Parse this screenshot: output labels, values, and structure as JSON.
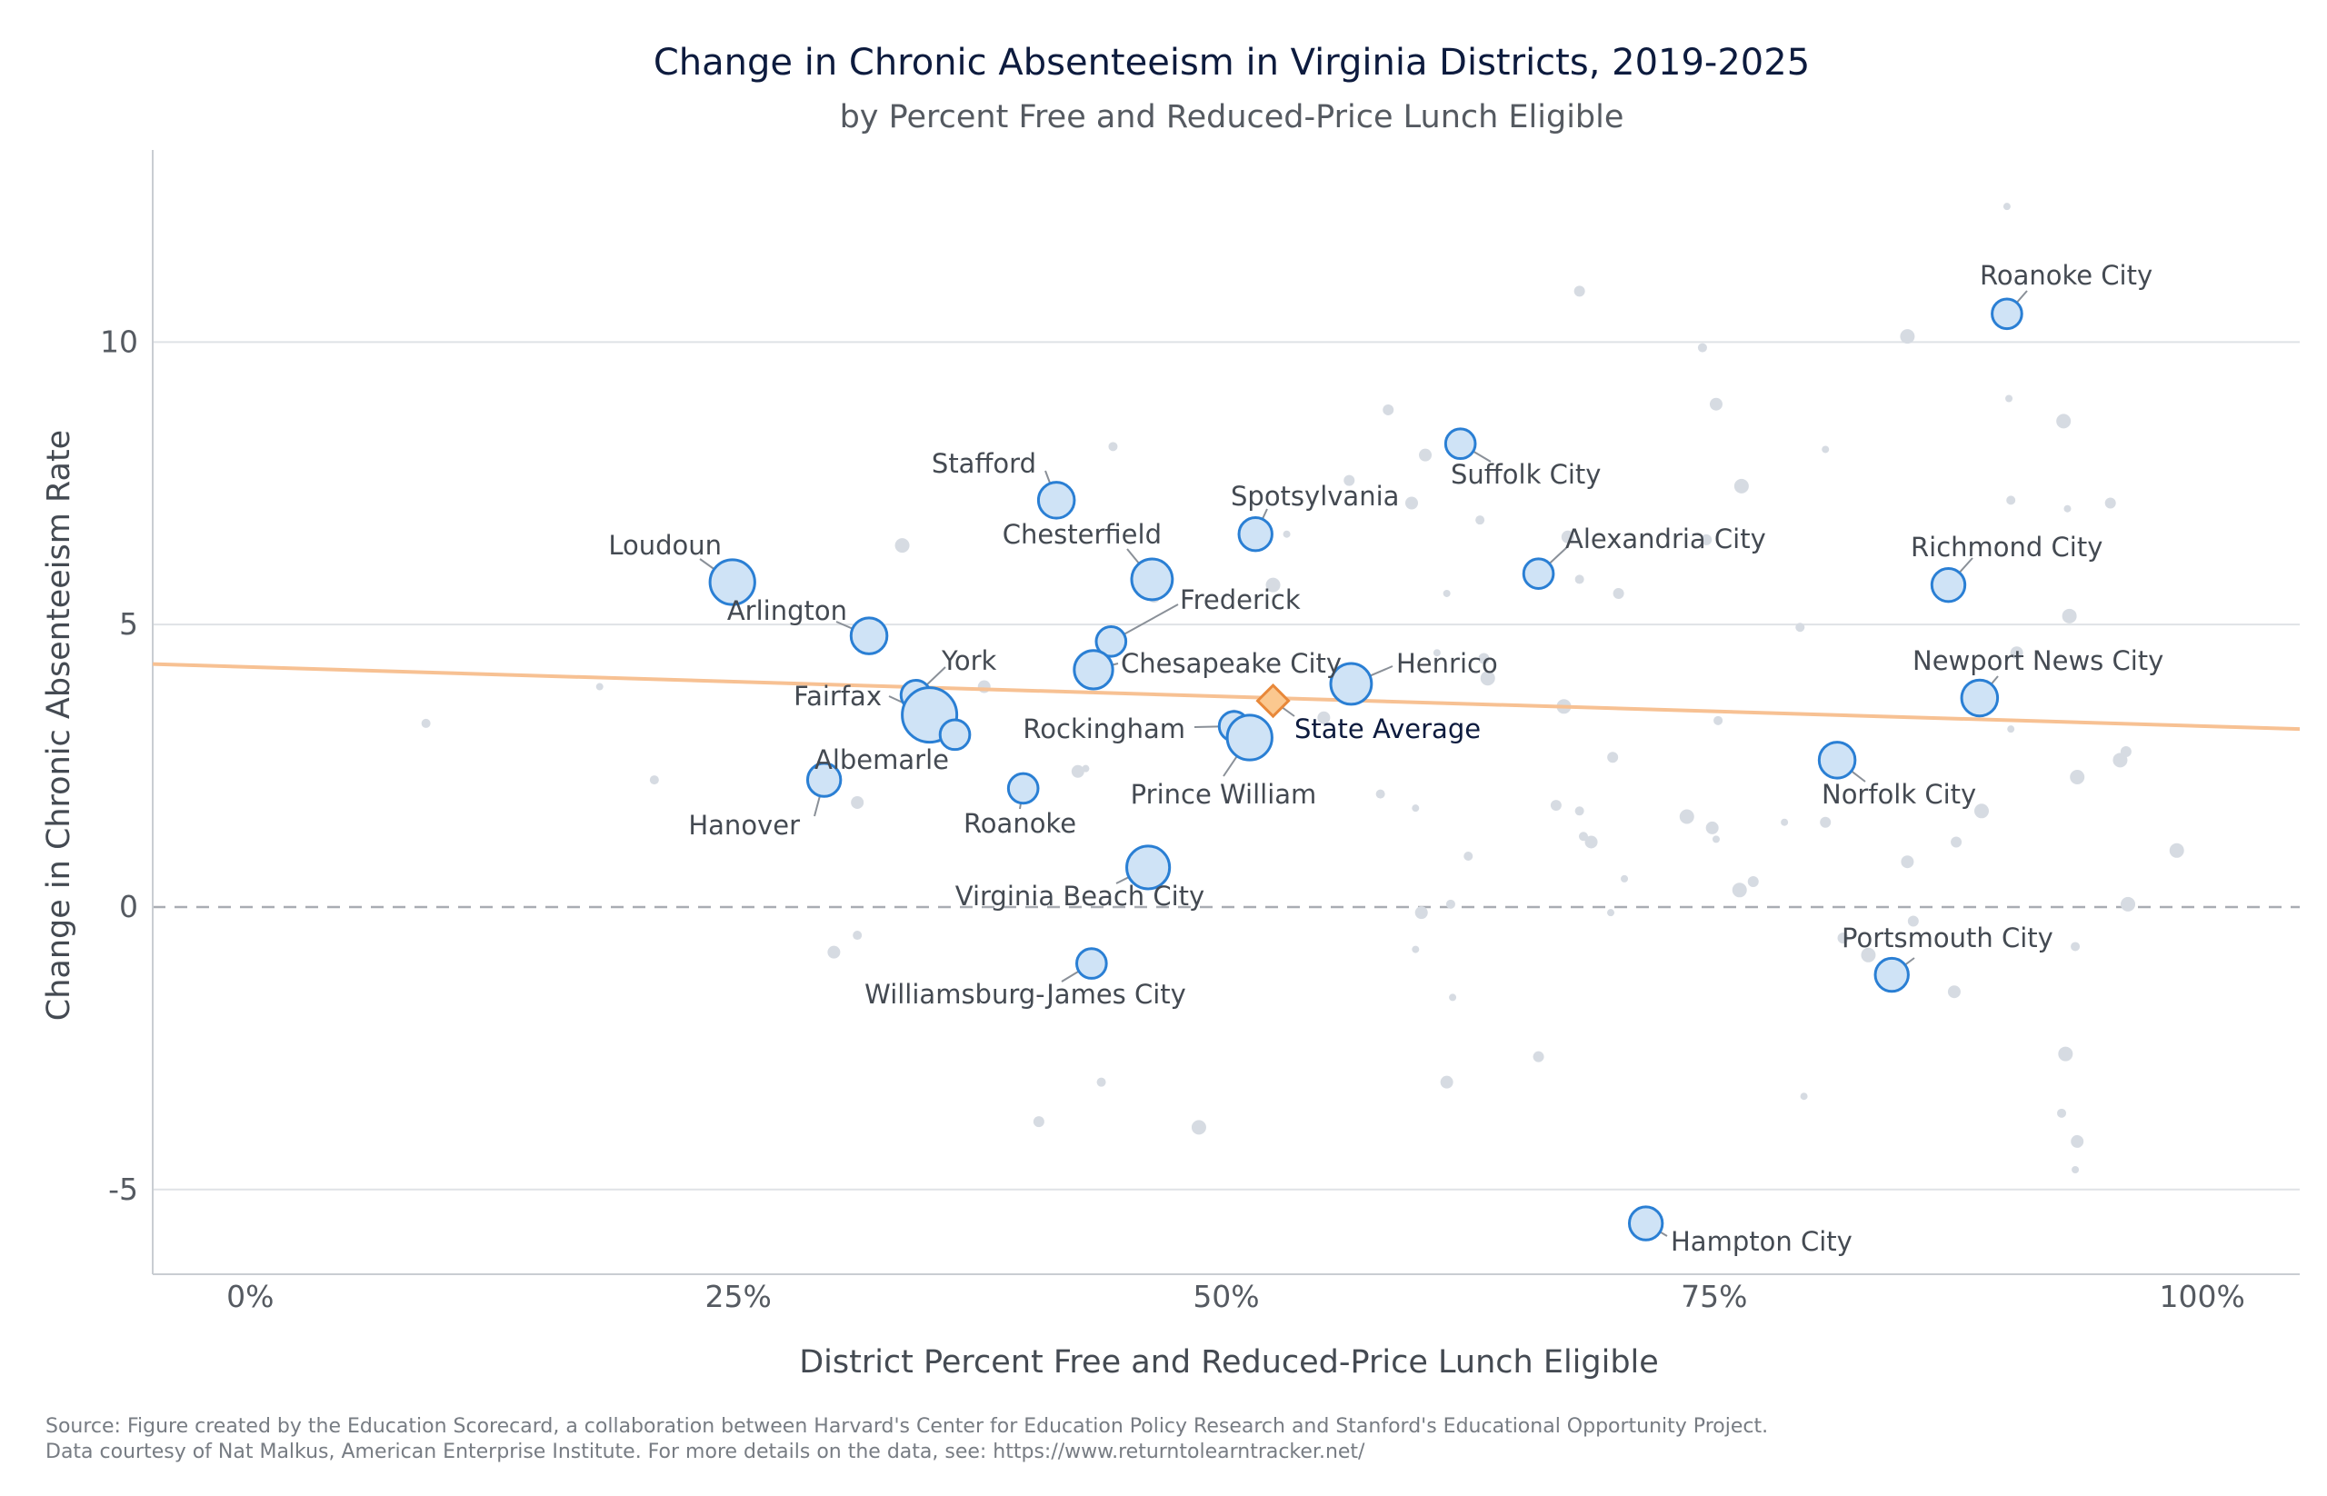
{
  "chart_data": {
    "type": "scatter",
    "title": "Change in Chronic Absenteeism in Virginia Districts, 2019-2025",
    "subtitle": "by Percent Free and Reduced-Price Lunch Eligible",
    "xlabel": "District Percent Free and Reduced-Price Lunch Eligible",
    "ylabel": "Change in Chronic Absenteeism Rate",
    "xlim": [
      -5,
      105
    ],
    "ylim": [
      -6.5,
      13.4
    ],
    "x_ticks": [
      0,
      25,
      50,
      75,
      100
    ],
    "x_tick_labels": [
      "0%",
      "25%",
      "50%",
      "75%",
      "100%"
    ],
    "y_ticks": [
      -5,
      0,
      5,
      10
    ],
    "y_tick_labels": [
      "-5",
      "0",
      "5",
      "10"
    ],
    "grid": "horizontal",
    "reference_line_y": 0,
    "trend_line": {
      "x": [
        -5,
        105
      ],
      "y": [
        4.3,
        3.15
      ]
    },
    "colors": {
      "highlight_fill": "#cfe3f6",
      "highlight_stroke": "#2a7fd4",
      "background_point": "#d6dbe2",
      "trend": "#f7c193",
      "state_fill": "#fbc88f",
      "state_stroke": "#e8883a"
    },
    "labeled_points": [
      {
        "name": "Roanoke City",
        "x": 90,
        "y": 10.5,
        "size": 1
      },
      {
        "name": "Suffolk City",
        "x": 62,
        "y": 8.2,
        "size": 1
      },
      {
        "name": "Stafford",
        "x": 41.3,
        "y": 7.2,
        "size": 2
      },
      {
        "name": "Spotsylvania",
        "x": 51.5,
        "y": 6.6,
        "size": 1.5
      },
      {
        "name": "Alexandria City",
        "x": 66,
        "y": 5.9,
        "size": 1
      },
      {
        "name": "Loudoun",
        "x": 24.7,
        "y": 5.75,
        "size": 4
      },
      {
        "name": "Chesterfield",
        "x": 46.2,
        "y": 5.8,
        "size": 3
      },
      {
        "name": "Richmond City",
        "x": 87,
        "y": 5.7,
        "size": 1.5
      },
      {
        "name": "Arlington",
        "x": 31.7,
        "y": 4.8,
        "size": 2
      },
      {
        "name": "Frederick",
        "x": 44.1,
        "y": 4.7,
        "size": 1
      },
      {
        "name": "Chesapeake City",
        "x": 43.2,
        "y": 4.2,
        "size": 2.5
      },
      {
        "name": "Henrico",
        "x": 56.4,
        "y": 3.95,
        "size": 3
      },
      {
        "name": "York",
        "x": 34.1,
        "y": 3.75,
        "size": 1
      },
      {
        "name": "Newport News City",
        "x": 88.6,
        "y": 3.7,
        "size": 2
      },
      {
        "name": "Fairfax",
        "x": 34.8,
        "y": 3.4,
        "size": 7
      },
      {
        "name": "Rockingham",
        "x": 50.4,
        "y": 3.2,
        "size": 1
      },
      {
        "name": "Albemarle",
        "x": 36.1,
        "y": 3.05,
        "size": 1
      },
      {
        "name": "Prince William",
        "x": 51.2,
        "y": 3.0,
        "size": 4
      },
      {
        "name": "Norfolk City",
        "x": 81.3,
        "y": 2.6,
        "size": 2
      },
      {
        "name": "Hanover",
        "x": 29.4,
        "y": 2.25,
        "size": 1.5
      },
      {
        "name": "Roanoke",
        "x": 39.6,
        "y": 2.1,
        "size": 1
      },
      {
        "name": "Virginia Beach City",
        "x": 46.0,
        "y": 0.7,
        "size": 3.5
      },
      {
        "name": "Williamsburg-James City",
        "x": 43.1,
        "y": -1.0,
        "size": 1
      },
      {
        "name": "Portsmouth City",
        "x": 84.1,
        "y": -1.2,
        "size": 1.5
      },
      {
        "name": "Hampton City",
        "x": 71.5,
        "y": -5.6,
        "size": 1.5
      }
    ],
    "state_average": {
      "name": "State Average",
      "x": 52.4,
      "y": 3.65
    },
    "background_points": [
      [
        90,
        12.4
      ],
      [
        68.1,
        10.9
      ],
      [
        84.9,
        10.1
      ],
      [
        74.4,
        9.9
      ],
      [
        75.1,
        8.9
      ],
      [
        90.1,
        9.0
      ],
      [
        58.3,
        8.8
      ],
      [
        92.9,
        8.6
      ],
      [
        44.2,
        8.15
      ],
      [
        60.2,
        8.0
      ],
      [
        80.7,
        8.1
      ],
      [
        56.3,
        7.55
      ],
      [
        76.4,
        7.45
      ],
      [
        90.2,
        7.2
      ],
      [
        59.5,
        7.15
      ],
      [
        93.1,
        7.05
      ],
      [
        95.3,
        7.15
      ],
      [
        33.4,
        6.4
      ],
      [
        63,
        6.85
      ],
      [
        67.5,
        6.55
      ],
      [
        53.1,
        6.6
      ],
      [
        74.6,
        6.5
      ],
      [
        52.4,
        5.7
      ],
      [
        68.1,
        5.8
      ],
      [
        46.3,
        5.5
      ],
      [
        61.3,
        5.55
      ],
      [
        70.1,
        5.55
      ],
      [
        93.2,
        5.15
      ],
      [
        79.4,
        4.95
      ],
      [
        90.5,
        4.5
      ],
      [
        60.8,
        4.5
      ],
      [
        63.2,
        4.4
      ],
      [
        63.4,
        4.05
      ],
      [
        9.0,
        3.25
      ],
      [
        37.6,
        3.9
      ],
      [
        17.9,
        3.9
      ],
      [
        50.4,
        3.4
      ],
      [
        67.3,
        3.55
      ],
      [
        75.2,
        3.3
      ],
      [
        55,
        3.35
      ],
      [
        90.2,
        3.15
      ],
      [
        96.1,
        2.75
      ],
      [
        95.8,
        2.6
      ],
      [
        20.7,
        2.25
      ],
      [
        42.4,
        2.4
      ],
      [
        42.8,
        2.45
      ],
      [
        69.8,
        2.65
      ],
      [
        93.6,
        2.3
      ],
      [
        57.9,
        2.0
      ],
      [
        31.1,
        1.85
      ],
      [
        59.7,
        1.75
      ],
      [
        66.9,
        1.8
      ],
      [
        73.6,
        1.6
      ],
      [
        68.1,
        1.7
      ],
      [
        74.9,
        1.4
      ],
      [
        78.6,
        1.5
      ],
      [
        80.7,
        1.5
      ],
      [
        88.7,
        1.7
      ],
      [
        68.3,
        1.25
      ],
      [
        68.7,
        1.15
      ],
      [
        75.1,
        1.2
      ],
      [
        87.4,
        1.15
      ],
      [
        98.7,
        1.0
      ],
      [
        62.4,
        0.9
      ],
      [
        84.9,
        0.8
      ],
      [
        70.4,
        0.5
      ],
      [
        77,
        0.45
      ],
      [
        76.3,
        0.3
      ],
      [
        61.5,
        0.05
      ],
      [
        60,
        -0.1
      ],
      [
        69.7,
        -0.1
      ],
      [
        85.2,
        -0.25
      ],
      [
        96.2,
        0.05
      ],
      [
        31.1,
        -0.5
      ],
      [
        29.9,
        -0.8
      ],
      [
        59.7,
        -0.75
      ],
      [
        81.6,
        -0.55
      ],
      [
        82.9,
        -0.85
      ],
      [
        93.5,
        -0.7
      ],
      [
        87.3,
        -1.5
      ],
      [
        61.6,
        -1.6
      ],
      [
        66,
        -2.65
      ],
      [
        93,
        -2.6
      ],
      [
        43.6,
        -3.1
      ],
      [
        61.3,
        -3.1
      ],
      [
        79.6,
        -3.35
      ],
      [
        40.4,
        -3.8
      ],
      [
        48.6,
        -3.9
      ],
      [
        92.8,
        -3.65
      ],
      [
        93.6,
        -4.15
      ],
      [
        93.5,
        -4.65
      ]
    ],
    "source_lines": [
      "Source: Figure created by the Education Scorecard, a collaboration between Harvard's Center for Education Policy Research and Stanford's Educational Opportunity Project.",
      "Data courtesy of Nat Malkus, American Enterprise Institute. For more details on the data, see: https://www.returntolearntracker.net/"
    ]
  }
}
